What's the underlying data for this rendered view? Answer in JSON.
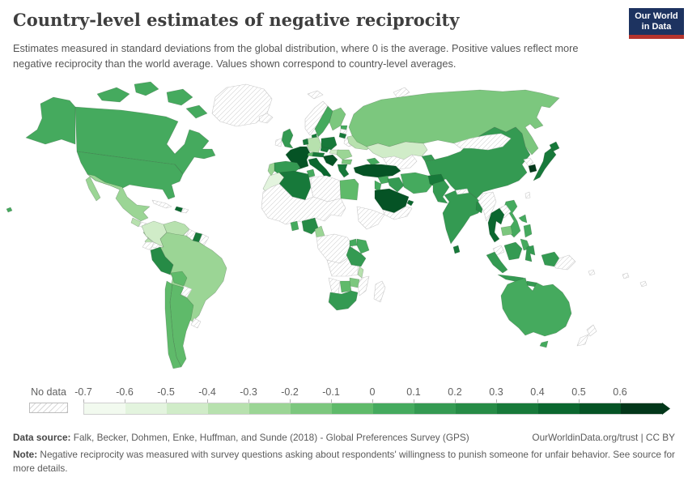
{
  "header": {
    "title": "Country-level estimates of negative reciprocity",
    "subtitle": "Estimates measured in standard deviations from the global distribution, where 0 is the average. Positive values reflect more negative reciprocity than the world average. Values shown correspond to country-level averages.",
    "logo": {
      "line1": "Our World",
      "line2": "in Data",
      "bg_color": "#1d3360",
      "accent_color": "#b5342d"
    }
  },
  "legend": {
    "no_data_label": "No data",
    "tick_labels": [
      "-0.7",
      "-0.6",
      "-0.5",
      "-0.4",
      "-0.3",
      "-0.2",
      "-0.1",
      "0",
      "0.1",
      "0.2",
      "0.3",
      "0.4",
      "0.5",
      "0.6"
    ],
    "bin_colors": [
      "#f2faef",
      "#e3f4de",
      "#d0ecc8",
      "#b7e1ae",
      "#9bd595",
      "#7cc77e",
      "#5fba6a",
      "#45aa5e",
      "#349a52",
      "#268b46",
      "#17793a",
      "#0b672f",
      "#055325",
      "#03371a"
    ]
  },
  "map": {
    "ocean_color": "#ffffff",
    "no_data_fill": "no-data",
    "hatch_line_color": "#d2d2d2",
    "border_color": "rgba(45,75,50,0.35)",
    "regions": [
      {
        "id": "greenland",
        "color": "no-data"
      },
      {
        "id": "iceland",
        "color": "no-data"
      },
      {
        "id": "svalbard",
        "color": "no-data"
      },
      {
        "id": "novayazemlya",
        "color": "no-data"
      },
      {
        "id": "canadaarctic",
        "color": "#45aa5e"
      },
      {
        "id": "canada",
        "color": "#45aa5e"
      },
      {
        "id": "alaska",
        "color": "#45aa5e"
      },
      {
        "id": "usa",
        "color": "#45aa5e"
      },
      {
        "id": "hawaii",
        "color": "#45aa5e"
      },
      {
        "id": "mexico",
        "color": "#9bd595"
      },
      {
        "id": "guatemala",
        "color": "#b7e1ae"
      },
      {
        "id": "honduras",
        "color": "no-data"
      },
      {
        "id": "nicaragua",
        "color": "#b7e1ae"
      },
      {
        "id": "costarica",
        "color": "#b7e1ae"
      },
      {
        "id": "panama",
        "color": "no-data"
      },
      {
        "id": "cuba",
        "color": "no-data"
      },
      {
        "id": "haiti",
        "color": "#0b672f"
      },
      {
        "id": "dominicanrep",
        "color": "no-data"
      },
      {
        "id": "colombia",
        "color": "#d0ecc8"
      },
      {
        "id": "venezuela",
        "color": "#b7e1ae"
      },
      {
        "id": "guyana",
        "color": "no-data"
      },
      {
        "id": "suriname",
        "color": "#17793a"
      },
      {
        "id": "frenchguiana",
        "color": "no-data"
      },
      {
        "id": "ecuador",
        "color": "no-data"
      },
      {
        "id": "brazil",
        "color": "#9bd595"
      },
      {
        "id": "peru",
        "color": "#268b46"
      },
      {
        "id": "bolivia",
        "color": "#5fba6a"
      },
      {
        "id": "paraguay",
        "color": "no-data"
      },
      {
        "id": "argentina",
        "color": "#5fba6a"
      },
      {
        "id": "chile",
        "color": "#5fba6a"
      },
      {
        "id": "uruguay",
        "color": "no-data"
      },
      {
        "id": "uk",
        "color": "#349a52"
      },
      {
        "id": "ireland",
        "color": "no-data"
      },
      {
        "id": "norway",
        "color": "no-data"
      },
      {
        "id": "sweden",
        "color": "#45aa5e"
      },
      {
        "id": "finland",
        "color": "#7cc77e"
      },
      {
        "id": "denmark",
        "color": "#17793a"
      },
      {
        "id": "estonia",
        "color": "#45aa5e"
      },
      {
        "id": "latvia",
        "color": "no-data"
      },
      {
        "id": "lithuania",
        "color": "#17793a"
      },
      {
        "id": "belarus",
        "color": "no-data"
      },
      {
        "id": "netherlands",
        "color": "#17793a"
      },
      {
        "id": "germany",
        "color": "#b7e1ae"
      },
      {
        "id": "poland",
        "color": "#17793a"
      },
      {
        "id": "france",
        "color": "#055325"
      },
      {
        "id": "spain",
        "color": "#349a52"
      },
      {
        "id": "portugal",
        "color": "#9bd595"
      },
      {
        "id": "switzerland",
        "color": "#5fba6a"
      },
      {
        "id": "czechia",
        "color": "#17793a"
      },
      {
        "id": "austria",
        "color": "#17793a"
      },
      {
        "id": "hungary",
        "color": "#d0ecc8"
      },
      {
        "id": "romania",
        "color": "#9bd595"
      },
      {
        "id": "bulgaria",
        "color": "#7cc77e"
      },
      {
        "id": "balkans",
        "color": "#055325"
      },
      {
        "id": "italy",
        "color": "#0b672f"
      },
      {
        "id": "greece",
        "color": "#17793a"
      },
      {
        "id": "ukraine",
        "color": "#b7e1ae"
      },
      {
        "id": "russia",
        "color": "#7cc77e"
      },
      {
        "id": "china",
        "color": "#349a52"
      },
      {
        "id": "mongolia",
        "color": "no-data"
      },
      {
        "id": "kazakhstan",
        "color": "#d0ecc8"
      },
      {
        "id": "centralasia",
        "color": "no-data"
      },
      {
        "id": "kyrgyzstan",
        "color": "#349a52"
      },
      {
        "id": "caucasus",
        "color": "#45aa5e"
      },
      {
        "id": "turkey",
        "color": "#055325"
      },
      {
        "id": "syria",
        "color": "#45aa5e"
      },
      {
        "id": "levant",
        "color": "#45aa5e"
      },
      {
        "id": "iraq",
        "color": "#349a52"
      },
      {
        "id": "iran",
        "color": "#45aa5e"
      },
      {
        "id": "afghanistan",
        "color": "#17793a"
      },
      {
        "id": "pakistan",
        "color": "#349a52"
      },
      {
        "id": "saudiarabia",
        "color": "#055325"
      },
      {
        "id": "uae",
        "color": "#0b672f"
      },
      {
        "id": "yemenoman",
        "color": "no-data"
      },
      {
        "id": "egypt",
        "color": "#5fba6a"
      },
      {
        "id": "morocco",
        "color": "#e3f4de"
      },
      {
        "id": "algeria",
        "color": "#17793a"
      },
      {
        "id": "tunisia",
        "color": "#45aa5e"
      },
      {
        "id": "libya",
        "color": "no-data"
      },
      {
        "id": "saharabelt",
        "color": "no-data"
      },
      {
        "id": "hornofafrica",
        "color": "no-data"
      },
      {
        "id": "ghana",
        "color": "#45aa5e"
      },
      {
        "id": "nigeria",
        "color": "#268b46"
      },
      {
        "id": "cameroon",
        "color": "#9bd595"
      },
      {
        "id": "centralafrica",
        "color": "no-data"
      },
      {
        "id": "angolazambia",
        "color": "no-data"
      },
      {
        "id": "mozambique",
        "color": "no-data"
      },
      {
        "id": "uganda",
        "color": "#45aa5e"
      },
      {
        "id": "kenya",
        "color": "#45aa5e"
      },
      {
        "id": "tanzania",
        "color": "#349a52"
      },
      {
        "id": "malawi",
        "color": "#b7e1ae"
      },
      {
        "id": "zimbabwe",
        "color": "#7cc77e"
      },
      {
        "id": "botswana",
        "color": "#5fba6a"
      },
      {
        "id": "namibia",
        "color": "no-data"
      },
      {
        "id": "southafrica",
        "color": "#349a52"
      },
      {
        "id": "madagascar",
        "color": "no-data"
      },
      {
        "id": "india",
        "color": "#349a52"
      },
      {
        "id": "nepal",
        "color": "no-data"
      },
      {
        "id": "bangladesh",
        "color": "#268b46"
      },
      {
        "id": "srilanka",
        "color": "#17793a"
      },
      {
        "id": "northkorea",
        "color": "no-data"
      },
      {
        "id": "southkorea",
        "color": "#03371a"
      },
      {
        "id": "japan",
        "color": "#17793a"
      },
      {
        "id": "taiwan",
        "color": "no-data"
      },
      {
        "id": "myanmar",
        "color": "no-data"
      },
      {
        "id": "thailand",
        "color": "#0b672f"
      },
      {
        "id": "vietnam",
        "color": "#45aa5e"
      },
      {
        "id": "laos",
        "color": "no-data"
      },
      {
        "id": "cambodia",
        "color": "#7cc77e"
      },
      {
        "id": "malaysia",
        "color": "no-data"
      },
      {
        "id": "philippines",
        "color": "#45aa5e"
      },
      {
        "id": "indonesia",
        "color": "#349a52"
      },
      {
        "id": "indonesiapapua",
        "color": "#349a52"
      },
      {
        "id": "papuanewguinea",
        "color": "no-data"
      },
      {
        "id": "pacificislands",
        "color": "no-data"
      },
      {
        "id": "australia",
        "color": "#45aa5e"
      },
      {
        "id": "tasmania",
        "color": "#45aa5e"
      },
      {
        "id": "newzealand",
        "color": "no-data"
      }
    ]
  },
  "footer": {
    "source_label": "Data source:",
    "source_text": " Falk, Becker, Dohmen, Enke, Huffman, and Sunde (2018) - Global Preferences Survey (GPS)",
    "attribution": "OurWorldinData.org/trust | CC BY",
    "note_label": "Note:",
    "note_text": " Negative reciprocity was measured with survey questions asking about respondents' willingness to punish someone for unfair behavior. See source for more details."
  }
}
